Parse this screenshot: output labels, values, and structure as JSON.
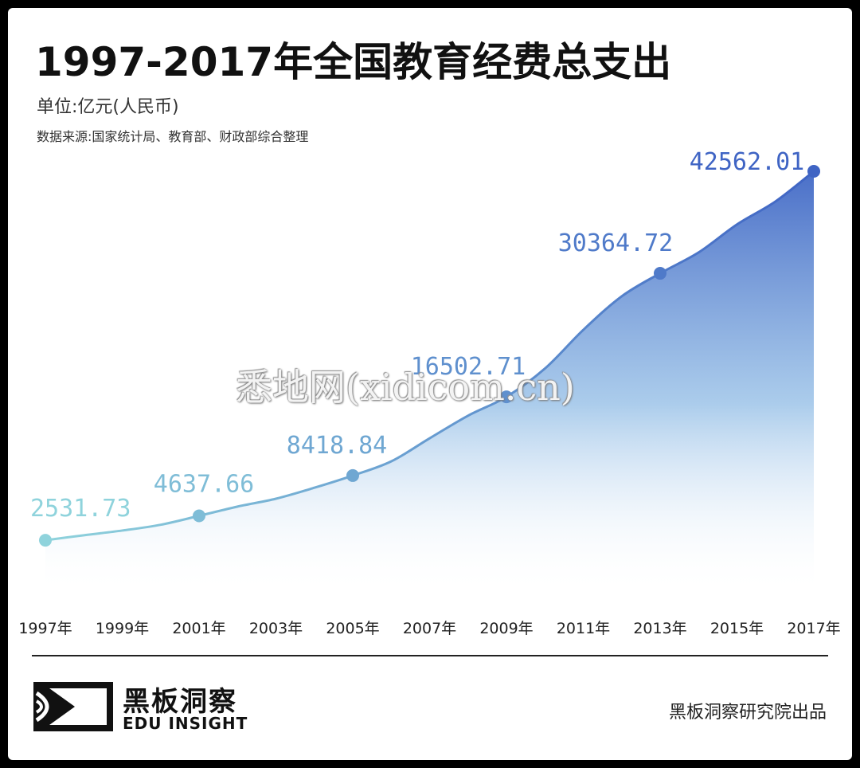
{
  "header": {
    "title": "1997-2017年全国教育经费总支出",
    "unit": "单位:亿元(人民币)",
    "source": "数据来源:国家统计局、教育部、财政部综合整理"
  },
  "watermark": "悉地网(xidicom.cn)",
  "footer": {
    "logo_cn": "黑板洞察",
    "logo_en": "EDU INSIGHT",
    "credit": "黑板洞察研究院出品"
  },
  "colors": {
    "line_start": "#8fd3dc",
    "line_end": "#3f64c4",
    "area_top": "#4a6fc8",
    "area_bottom": "#ffffff"
  },
  "chart_data": {
    "type": "area",
    "title": "1997-2017年全国教育经费总支出",
    "ylabel": "单位:亿元(人民币)",
    "categories": [
      "1997年",
      "1999年",
      "2001年",
      "2003年",
      "2005年",
      "2007年",
      "2009年",
      "2011年",
      "2013年",
      "2015年",
      "2017年"
    ],
    "x": [
      1997,
      1998,
      1999,
      2000,
      2001,
      2002,
      2003,
      2004,
      2005,
      2006,
      2007,
      2008,
      2009,
      2010,
      2011,
      2012,
      2013,
      2014,
      2015,
      2016,
      2017
    ],
    "values": [
      2531.73,
      2950,
      3349,
      3849,
      4637.66,
      5480,
      6208,
      7243,
      8418.84,
      9815,
      12148,
      14500,
      16502.71,
      19562,
      23869,
      27696,
      30364.72,
      32806,
      36129,
      38888,
      42562.01
    ],
    "labeled_points": [
      {
        "x": 1997,
        "label": "2531.73"
      },
      {
        "x": 2001,
        "label": "4637.66"
      },
      {
        "x": 2005,
        "label": "8418.84"
      },
      {
        "x": 2009,
        "label": "16502.71"
      },
      {
        "x": 2013,
        "label": "30364.72"
      },
      {
        "x": 2017,
        "label": "42562.01"
      }
    ],
    "ylim": [
      0,
      50000
    ],
    "grid": false,
    "legend": "none"
  }
}
